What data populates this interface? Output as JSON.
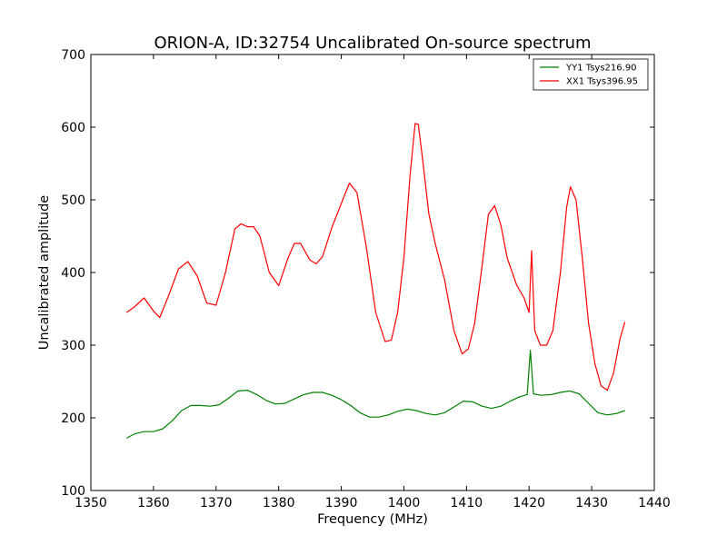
{
  "chart_data": {
    "type": "line",
    "title": "ORION-A, ID:32754 Uncalibrated On-source spectrum",
    "xlabel": "Frequency (MHz)",
    "ylabel": "Uncalibrated amplitude",
    "xlim": [
      1350,
      1440
    ],
    "ylim": [
      100,
      700
    ],
    "xticks": [
      1350,
      1360,
      1370,
      1380,
      1390,
      1400,
      1410,
      1420,
      1430,
      1440
    ],
    "yticks": [
      100,
      200,
      300,
      400,
      500,
      600,
      700
    ],
    "grid": false,
    "legend_position": "top-right",
    "series": [
      {
        "name": "YY1 Tsys216.90",
        "color": "#008000",
        "x": [
          1355.7,
          1357,
          1358.5,
          1360,
          1361.5,
          1363,
          1364.5,
          1366,
          1367.5,
          1369,
          1370.5,
          1372,
          1373.5,
          1375,
          1376.5,
          1378,
          1379.5,
          1381,
          1382.5,
          1384,
          1385.5,
          1387,
          1388.5,
          1390,
          1391.5,
          1393,
          1394.5,
          1396,
          1397.5,
          1399,
          1400.5,
          1402,
          1403.5,
          1405,
          1406.5,
          1408,
          1409.5,
          1411,
          1412.5,
          1414,
          1415.5,
          1417,
          1418.5,
          1419.7,
          1420.2,
          1420.7,
          1422,
          1423.5,
          1425,
          1426.5,
          1428,
          1429.5,
          1431,
          1432.5,
          1434,
          1435.3
        ],
        "y": [
          172,
          178,
          181,
          181,
          185,
          196,
          210,
          217,
          217,
          216,
          218,
          227,
          237,
          238,
          232,
          224,
          219,
          220,
          226,
          232,
          235,
          235,
          231,
          225,
          217,
          207,
          201,
          201,
          204,
          209,
          212,
          210,
          206,
          204,
          207,
          215,
          223,
          222,
          216,
          213,
          216,
          223,
          229,
          232,
          293,
          233,
          231,
          232,
          235,
          237,
          233,
          220,
          207,
          204,
          206,
          210
        ]
      },
      {
        "name": "XX1 Tsys396.95",
        "color": "#ff0000",
        "x": [
          1355.7,
          1357,
          1358.5,
          1360,
          1361,
          1362.5,
          1364,
          1365.5,
          1367,
          1368.5,
          1370,
          1371.5,
          1373,
          1374,
          1375,
          1376,
          1377,
          1378.5,
          1380,
          1381.5,
          1382.5,
          1383.5,
          1385,
          1386,
          1387,
          1388.5,
          1390,
          1391.3,
          1392.5,
          1394,
          1395.5,
          1397,
          1398,
          1399,
          1400,
          1401,
          1401.8,
          1402.3,
          1403,
          1404,
          1405,
          1406.5,
          1408,
          1409.3,
          1410.3,
          1411.3,
          1412.5,
          1413.5,
          1414.5,
          1415.5,
          1416.5,
          1418,
          1419.2,
          1420,
          1420.4,
          1420.9,
          1421.8,
          1422.8,
          1423.8,
          1425,
          1426,
          1426.6,
          1427.5,
          1428.5,
          1429.5,
          1430.5,
          1431.5,
          1432.5,
          1433.5,
          1434.5,
          1435.3
        ],
        "y": [
          345,
          353,
          365,
          347,
          338,
          370,
          405,
          415,
          395,
          358,
          355,
          400,
          460,
          467,
          463,
          463,
          450,
          400,
          382,
          420,
          440,
          440,
          417,
          412,
          422,
          462,
          495,
          523,
          510,
          435,
          345,
          305,
          307,
          345,
          420,
          535,
          605,
          604,
          555,
          480,
          440,
          390,
          320,
          288,
          295,
          330,
          410,
          480,
          492,
          465,
          420,
          383,
          365,
          345,
          430,
          320,
          300,
          300,
          320,
          400,
          490,
          518,
          500,
          420,
          330,
          275,
          244,
          238,
          262,
          308,
          332
        ]
      }
    ]
  }
}
